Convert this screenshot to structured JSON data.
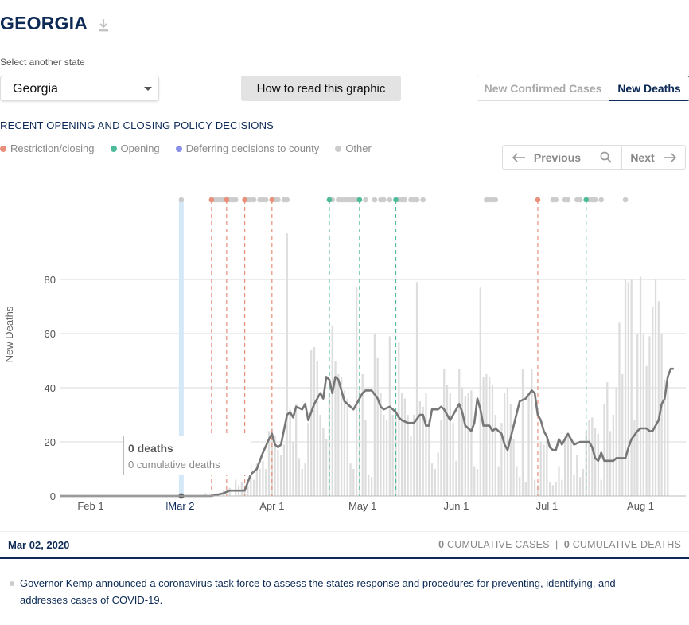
{
  "header": {
    "title": "GEORGIA"
  },
  "selector": {
    "label": "Select another state",
    "value": "Georgia"
  },
  "how_button": "How to read this graphic",
  "toggle": {
    "cases": "New Confirmed Cases",
    "deaths": "New Deaths"
  },
  "policy": {
    "heading": "RECENT OPENING AND CLOSING POLICY DECISIONS"
  },
  "legend": [
    {
      "label": "Restriction/closing",
      "color": "#e8907a"
    },
    {
      "label": "Opening",
      "color": "#4dbb9a"
    },
    {
      "label": "Deferring decisions to county",
      "color": "#8a8fe8"
    },
    {
      "label": "Other",
      "color": "#cccccc"
    }
  ],
  "pager": {
    "prev": "Previous",
    "next": "Next"
  },
  "tooltip": {
    "title": "0 deaths",
    "sub": "0 cumulative deaths"
  },
  "footer": {
    "date": "Mar 02, 2020",
    "cases_count": "0",
    "cases_label": "CUMULATIVE CASES",
    "separator": "|",
    "deaths_count": "0",
    "deaths_label": "CUMULATIVE DEATHS",
    "event": "Governor Kemp announced a coronavirus task force to assess the states response and procedures for preventing, identifying, and addresses cases of COVID-19."
  },
  "chart_data": {
    "type": "bar",
    "ylabel": "New Deaths",
    "ylim": [
      0,
      80
    ],
    "yticks": [
      0,
      20,
      40,
      60,
      80
    ],
    "x_start": "2020-01-22",
    "x_end": "2020-08-16",
    "xticks": [
      {
        "date": "2020-02-01",
        "label": "Feb 1"
      },
      {
        "date": "2020-03-02",
        "label": "Mar 2",
        "highlight": true
      },
      {
        "date": "2020-04-01",
        "label": "Apr 1"
      },
      {
        "date": "2020-05-01",
        "label": "May 1"
      },
      {
        "date": "2020-06-01",
        "label": "Jun 1"
      },
      {
        "date": "2020-07-01",
        "label": "Jul 1"
      },
      {
        "date": "2020-08-01",
        "label": "Aug 1"
      }
    ],
    "selected_date": "2020-03-02",
    "bar_color": "#dddddd",
    "line_color": "#777777",
    "bars": [
      [
        "2020-03-10",
        1
      ],
      [
        "2020-03-12",
        1
      ],
      [
        "2020-03-14",
        1
      ],
      [
        "2020-03-16",
        2
      ],
      [
        "2020-03-18",
        3
      ],
      [
        "2020-03-20",
        6
      ],
      [
        "2020-03-21",
        4
      ],
      [
        "2020-03-22",
        5
      ],
      [
        "2020-03-23",
        3
      ],
      [
        "2020-03-24",
        4
      ],
      [
        "2020-03-25",
        12
      ],
      [
        "2020-03-26",
        6
      ],
      [
        "2020-03-27",
        12
      ],
      [
        "2020-03-28",
        10
      ],
      [
        "2020-03-29",
        13
      ],
      [
        "2020-03-30",
        10
      ],
      [
        "2020-03-31",
        24
      ],
      [
        "2020-04-01",
        25
      ],
      [
        "2020-04-02",
        22
      ],
      [
        "2020-04-03",
        17
      ],
      [
        "2020-04-04",
        15
      ],
      [
        "2020-04-05",
        19
      ],
      [
        "2020-04-06",
        97
      ],
      [
        "2020-04-07",
        32
      ],
      [
        "2020-04-08",
        20
      ],
      [
        "2020-04-09",
        34
      ],
      [
        "2020-04-10",
        14
      ],
      [
        "2020-04-11",
        10
      ],
      [
        "2020-04-12",
        12
      ],
      [
        "2020-04-13",
        27
      ],
      [
        "2020-04-14",
        54
      ],
      [
        "2020-04-15",
        55
      ],
      [
        "2020-04-16",
        50
      ],
      [
        "2020-04-17",
        30
      ],
      [
        "2020-04-18",
        25
      ],
      [
        "2020-04-19",
        21
      ],
      [
        "2020-04-20",
        38
      ],
      [
        "2020-04-21",
        63
      ],
      [
        "2020-04-22",
        50
      ],
      [
        "2020-04-23",
        45
      ],
      [
        "2020-04-24",
        44
      ],
      [
        "2020-04-25",
        39
      ],
      [
        "2020-04-26",
        36
      ],
      [
        "2020-04-27",
        12
      ],
      [
        "2020-04-28",
        10
      ],
      [
        "2020-04-29",
        77
      ],
      [
        "2020-04-30",
        39
      ],
      [
        "2020-05-01",
        45
      ],
      [
        "2020-05-02",
        28
      ],
      [
        "2020-05-03",
        8
      ],
      [
        "2020-05-04",
        7
      ],
      [
        "2020-05-05",
        60
      ],
      [
        "2020-05-06",
        51
      ],
      [
        "2020-05-07",
        38
      ],
      [
        "2020-05-08",
        30
      ],
      [
        "2020-05-09",
        28
      ],
      [
        "2020-05-10",
        59
      ],
      [
        "2020-05-11",
        30
      ],
      [
        "2020-05-12",
        29
      ],
      [
        "2020-05-13",
        57
      ],
      [
        "2020-05-14",
        38
      ],
      [
        "2020-05-15",
        36
      ],
      [
        "2020-05-16",
        30
      ],
      [
        "2020-05-17",
        22
      ],
      [
        "2020-05-18",
        30
      ],
      [
        "2020-05-19",
        79
      ],
      [
        "2020-05-20",
        35
      ],
      [
        "2020-05-21",
        33
      ],
      [
        "2020-05-22",
        38
      ],
      [
        "2020-05-23",
        28
      ],
      [
        "2020-05-24",
        12
      ],
      [
        "2020-05-25",
        10
      ],
      [
        "2020-05-26",
        16
      ],
      [
        "2020-05-27",
        28
      ],
      [
        "2020-05-28",
        47
      ],
      [
        "2020-05-29",
        41
      ],
      [
        "2020-05-30",
        38
      ],
      [
        "2020-05-31",
        27
      ],
      [
        "2020-06-01",
        13
      ],
      [
        "2020-06-02",
        47
      ],
      [
        "2020-06-03",
        40
      ],
      [
        "2020-06-04",
        37
      ],
      [
        "2020-06-05",
        38
      ],
      [
        "2020-06-06",
        39
      ],
      [
        "2020-06-07",
        11
      ],
      [
        "2020-06-08",
        10
      ],
      [
        "2020-06-09",
        77
      ],
      [
        "2020-06-10",
        44
      ],
      [
        "2020-06-11",
        45
      ],
      [
        "2020-06-12",
        44
      ],
      [
        "2020-06-13",
        41
      ],
      [
        "2020-06-14",
        30
      ],
      [
        "2020-06-15",
        11
      ],
      [
        "2020-06-16",
        27
      ],
      [
        "2020-06-17",
        38
      ],
      [
        "2020-06-18",
        40
      ],
      [
        "2020-06-19",
        34
      ],
      [
        "2020-06-20",
        21
      ],
      [
        "2020-06-21",
        11
      ],
      [
        "2020-06-22",
        7
      ],
      [
        "2020-06-23",
        47
      ],
      [
        "2020-06-24",
        5
      ],
      [
        "2020-06-25",
        38
      ],
      [
        "2020-06-26",
        47
      ],
      [
        "2020-06-27",
        6
      ],
      [
        "2020-06-28",
        4
      ],
      [
        "2020-06-29",
        20
      ],
      [
        "2020-06-30",
        19
      ],
      [
        "2020-07-01",
        21
      ],
      [
        "2020-07-02",
        5
      ],
      [
        "2020-07-03",
        4
      ],
      [
        "2020-07-04",
        5
      ],
      [
        "2020-07-05",
        11
      ],
      [
        "2020-07-06",
        6
      ],
      [
        "2020-07-07",
        22
      ],
      [
        "2020-07-08",
        23
      ],
      [
        "2020-07-09",
        20
      ],
      [
        "2020-07-10",
        8
      ],
      [
        "2020-07-11",
        15
      ],
      [
        "2020-07-12",
        7
      ],
      [
        "2020-07-13",
        10
      ],
      [
        "2020-07-14",
        24
      ],
      [
        "2020-07-15",
        28
      ],
      [
        "2020-07-16",
        29
      ],
      [
        "2020-07-17",
        25
      ],
      [
        "2020-07-18",
        23
      ],
      [
        "2020-07-19",
        6
      ],
      [
        "2020-07-20",
        34
      ],
      [
        "2020-07-21",
        42
      ],
      [
        "2020-07-22",
        24
      ],
      [
        "2020-07-23",
        30
      ],
      [
        "2020-07-24",
        40
      ],
      [
        "2020-07-25",
        64
      ],
      [
        "2020-07-26",
        45
      ],
      [
        "2020-07-27",
        80
      ],
      [
        "2020-07-28",
        79
      ],
      [
        "2020-07-29",
        80
      ],
      [
        "2020-07-30",
        28
      ],
      [
        "2020-07-31",
        60
      ],
      [
        "2020-08-01",
        81
      ],
      [
        "2020-08-02",
        60
      ],
      [
        "2020-08-03",
        48
      ],
      [
        "2020-08-04",
        59
      ],
      [
        "2020-08-05",
        70
      ],
      [
        "2020-08-06",
        80
      ],
      [
        "2020-08-07",
        72
      ],
      [
        "2020-08-08",
        60
      ],
      [
        "2020-08-09",
        43
      ],
      [
        "2020-08-10",
        42
      ]
    ],
    "line": [
      [
        "2020-01-22",
        0
      ],
      [
        "2020-03-12",
        0
      ],
      [
        "2020-03-16",
        1
      ],
      [
        "2020-03-18",
        2
      ],
      [
        "2020-03-20",
        2
      ],
      [
        "2020-03-23",
        2
      ],
      [
        "2020-03-25",
        8
      ],
      [
        "2020-03-27",
        10
      ],
      [
        "2020-03-29",
        16
      ],
      [
        "2020-03-31",
        21
      ],
      [
        "2020-04-01",
        23
      ],
      [
        "2020-04-02",
        19
      ],
      [
        "2020-04-03",
        18
      ],
      [
        "2020-04-04",
        19
      ],
      [
        "2020-04-06",
        30
      ],
      [
        "2020-04-07",
        31
      ],
      [
        "2020-04-08",
        29
      ],
      [
        "2020-04-09",
        33
      ],
      [
        "2020-04-11",
        32
      ],
      [
        "2020-04-12",
        34
      ],
      [
        "2020-04-13",
        28
      ],
      [
        "2020-04-15",
        34
      ],
      [
        "2020-04-16",
        36
      ],
      [
        "2020-04-17",
        38
      ],
      [
        "2020-04-18",
        36
      ],
      [
        "2020-04-19",
        44
      ],
      [
        "2020-04-20",
        43
      ],
      [
        "2020-04-21",
        38
      ],
      [
        "2020-04-22",
        44
      ],
      [
        "2020-04-23",
        43
      ],
      [
        "2020-04-25",
        35
      ],
      [
        "2020-04-27",
        33
      ],
      [
        "2020-04-28",
        32
      ],
      [
        "2020-04-30",
        36
      ],
      [
        "2020-05-01",
        38
      ],
      [
        "2020-05-02",
        39
      ],
      [
        "2020-05-04",
        39
      ],
      [
        "2020-05-06",
        36
      ],
      [
        "2020-05-07",
        33
      ],
      [
        "2020-05-08",
        32
      ],
      [
        "2020-05-10",
        33
      ],
      [
        "2020-05-11",
        32
      ],
      [
        "2020-05-12",
        31
      ],
      [
        "2020-05-13",
        29
      ],
      [
        "2020-05-14",
        28
      ],
      [
        "2020-05-16",
        27
      ],
      [
        "2020-05-18",
        27
      ],
      [
        "2020-05-20",
        30
      ],
      [
        "2020-05-21",
        30
      ],
      [
        "2020-05-22",
        26
      ],
      [
        "2020-05-23",
        26
      ],
      [
        "2020-05-24",
        32
      ],
      [
        "2020-05-26",
        32
      ],
      [
        "2020-05-27",
        33
      ],
      [
        "2020-05-28",
        32
      ],
      [
        "2020-05-30",
        28
      ],
      [
        "2020-05-31",
        30
      ],
      [
        "2020-06-02",
        34
      ],
      [
        "2020-06-03",
        31
      ],
      [
        "2020-06-04",
        26
      ],
      [
        "2020-06-06",
        24
      ],
      [
        "2020-06-07",
        27
      ],
      [
        "2020-06-08",
        36
      ],
      [
        "2020-06-09",
        32
      ],
      [
        "2020-06-10",
        26
      ],
      [
        "2020-06-12",
        26
      ],
      [
        "2020-06-13",
        24
      ],
      [
        "2020-06-14",
        25
      ],
      [
        "2020-06-16",
        23
      ],
      [
        "2020-06-17",
        19
      ],
      [
        "2020-06-18",
        17
      ],
      [
        "2020-06-20",
        26
      ],
      [
        "2020-06-22",
        35
      ],
      [
        "2020-06-24",
        36
      ],
      [
        "2020-06-26",
        39
      ],
      [
        "2020-06-27",
        38
      ],
      [
        "2020-06-28",
        30
      ],
      [
        "2020-06-29",
        28
      ],
      [
        "2020-06-30",
        24
      ],
      [
        "2020-07-01",
        22
      ],
      [
        "2020-07-02",
        18
      ],
      [
        "2020-07-03",
        17
      ],
      [
        "2020-07-04",
        17
      ],
      [
        "2020-07-05",
        21
      ],
      [
        "2020-07-06",
        19
      ],
      [
        "2020-07-08",
        23
      ],
      [
        "2020-07-09",
        21
      ],
      [
        "2020-07-10",
        19
      ],
      [
        "2020-07-12",
        20
      ],
      [
        "2020-07-14",
        20
      ],
      [
        "2020-07-15",
        20
      ],
      [
        "2020-07-16",
        18
      ],
      [
        "2020-07-17",
        14
      ],
      [
        "2020-07-18",
        13
      ],
      [
        "2020-07-19",
        16
      ],
      [
        "2020-07-20",
        13
      ],
      [
        "2020-07-21",
        13
      ],
      [
        "2020-07-23",
        13
      ],
      [
        "2020-07-24",
        14
      ],
      [
        "2020-07-25",
        14
      ],
      [
        "2020-07-27",
        14
      ],
      [
        "2020-07-28",
        18
      ],
      [
        "2020-07-29",
        21
      ],
      [
        "2020-07-31",
        24
      ],
      [
        "2020-08-01",
        25
      ],
      [
        "2020-08-03",
        25
      ],
      [
        "2020-08-04",
        24
      ],
      [
        "2020-08-05",
        24
      ],
      [
        "2020-08-07",
        28
      ],
      [
        "2020-08-08",
        34
      ],
      [
        "2020-08-09",
        36
      ],
      [
        "2020-08-10",
        44
      ],
      [
        "2020-08-11",
        47
      ],
      [
        "2020-08-12",
        47
      ]
    ],
    "policy_markers": [
      {
        "date": "2020-03-02",
        "type": "other",
        "selected": true
      },
      {
        "date": "2020-03-12",
        "type": "restriction"
      },
      {
        "date": "2020-03-17",
        "type": "restriction"
      },
      {
        "date": "2020-03-23",
        "type": "restriction"
      },
      {
        "date": "2020-04-01",
        "type": "restriction"
      },
      {
        "date": "2020-04-20",
        "type": "opening"
      },
      {
        "date": "2020-04-30",
        "type": "opening"
      },
      {
        "date": "2020-05-12",
        "type": "opening"
      },
      {
        "date": "2020-06-28",
        "type": "restriction"
      },
      {
        "date": "2020-07-14",
        "type": "opening"
      }
    ],
    "other_markers": [
      "2020-03-13",
      "2020-03-14",
      "2020-03-15",
      "2020-03-16",
      "2020-03-18",
      "2020-03-19",
      "2020-03-20",
      "2020-03-24",
      "2020-03-25",
      "2020-03-26",
      "2020-03-28",
      "2020-03-29",
      "2020-03-30",
      "2020-04-02",
      "2020-04-03",
      "2020-04-05",
      "2020-04-06",
      "2020-04-21",
      "2020-04-23",
      "2020-04-24",
      "2020-04-25",
      "2020-04-26",
      "2020-04-27",
      "2020-04-28",
      "2020-04-29",
      "2020-05-02",
      "2020-05-05",
      "2020-05-07",
      "2020-05-08",
      "2020-05-10",
      "2020-05-13",
      "2020-05-14",
      "2020-05-15",
      "2020-05-17",
      "2020-05-18",
      "2020-05-19",
      "2020-05-21",
      "2020-06-11",
      "2020-06-12",
      "2020-06-13",
      "2020-06-14",
      "2020-07-03",
      "2020-07-04",
      "2020-07-07",
      "2020-07-08",
      "2020-07-11",
      "2020-07-12",
      "2020-07-15",
      "2020-07-16",
      "2020-07-17",
      "2020-07-19",
      "2020-07-27"
    ]
  }
}
